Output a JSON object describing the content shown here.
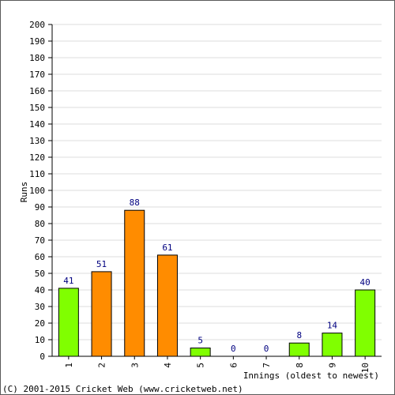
{
  "chart_data": {
    "type": "bar",
    "categories": [
      "1",
      "2",
      "3",
      "4",
      "5",
      "6",
      "7",
      "8",
      "9",
      "10"
    ],
    "values": [
      41,
      51,
      88,
      61,
      5,
      0,
      0,
      8,
      14,
      40
    ],
    "data_labels": [
      "41",
      "51",
      "88",
      "61",
      "5",
      "0",
      "0",
      "8",
      "14",
      "40"
    ],
    "bar_colors": [
      "#80ff00",
      "#ff8c00",
      "#ff8c00",
      "#ff8c00",
      "#80ff00",
      "#80ff00",
      "#80ff00",
      "#80ff00",
      "#80ff00",
      "#80ff00"
    ],
    "ylabel": "Runs",
    "xlabel": "Innings (oldest to newest)",
    "ylim": [
      0,
      200
    ],
    "yticks": [
      0,
      10,
      20,
      30,
      40,
      50,
      60,
      70,
      80,
      90,
      100,
      110,
      120,
      130,
      140,
      150,
      160,
      170,
      180,
      190,
      200
    ],
    "grid": true,
    "legend": "none"
  },
  "footer": "(C) 2001-2015 Cricket Web (www.cricketweb.net)",
  "colors": {
    "label_text": "#000080",
    "axis_text": "#000000",
    "grid": "#dddddd",
    "bar_outline": "#000000"
  }
}
